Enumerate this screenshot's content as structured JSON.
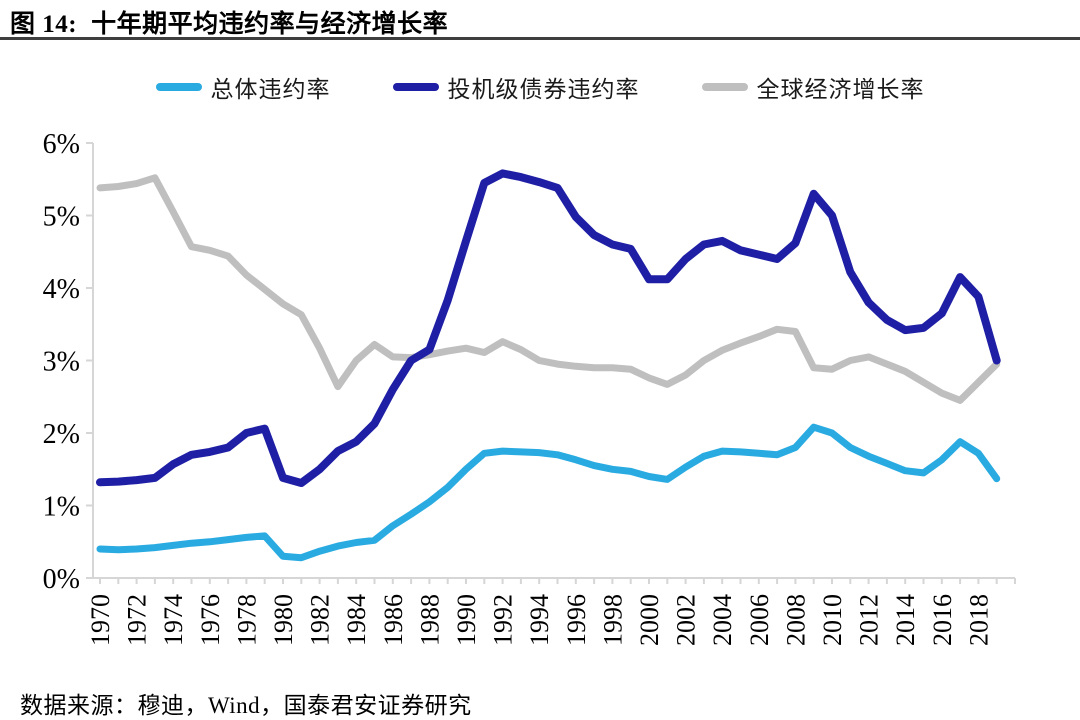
{
  "figure": {
    "title_prefix": "图 14:",
    "title_text": "十年期平均违约率与经济增长率",
    "source": "数据来源：穆迪，Wind，国泰君安证券研究"
  },
  "colors": {
    "overall": "#29ABE2",
    "speculative": "#1F1FA6",
    "global_growth": "#BFBFBF",
    "axis": "#D6D6D6",
    "title_rule": "#3F3F3F",
    "label_text": "#000000"
  },
  "chart_data": {
    "type": "line",
    "x": [
      1970,
      1971,
      1972,
      1973,
      1974,
      1975,
      1976,
      1977,
      1978,
      1979,
      1980,
      1981,
      1982,
      1983,
      1984,
      1985,
      1986,
      1987,
      1988,
      1989,
      1990,
      1991,
      1992,
      1993,
      1994,
      1995,
      1996,
      1997,
      1998,
      1999,
      2000,
      2001,
      2002,
      2003,
      2004,
      2005,
      2006,
      2007,
      2008,
      2009,
      2010,
      2011,
      2012,
      2013,
      2014,
      2015,
      2016,
      2017,
      2018,
      2019
    ],
    "x_label_step": 2,
    "x_label_min": 1970,
    "x_label_max": 2018,
    "ylim": [
      0,
      6
    ],
    "y_ticks": [
      "0%",
      "1%",
      "2%",
      "3%",
      "4%",
      "5%",
      "6%"
    ],
    "grid": false,
    "legend_position": "top",
    "series": [
      {
        "name": "总体违约率",
        "color_key": "overall",
        "values": [
          0.4,
          0.39,
          0.4,
          0.42,
          0.45,
          0.48,
          0.5,
          0.53,
          0.56,
          0.58,
          0.3,
          0.28,
          0.37,
          0.44,
          0.49,
          0.52,
          0.72,
          0.88,
          1.05,
          1.25,
          1.5,
          1.72,
          1.75,
          1.74,
          1.73,
          1.7,
          1.63,
          1.55,
          1.5,
          1.47,
          1.4,
          1.36,
          1.53,
          1.68,
          1.75,
          1.74,
          1.72,
          1.7,
          1.8,
          2.08,
          2.0,
          1.8,
          1.68,
          1.58,
          1.48,
          1.45,
          1.63,
          1.88,
          1.72,
          1.37
        ]
      },
      {
        "name": "投机级债券违约率",
        "color_key": "speculative",
        "values": [
          1.32,
          1.33,
          1.35,
          1.38,
          1.57,
          1.7,
          1.74,
          1.8,
          2.0,
          2.06,
          1.38,
          1.31,
          1.5,
          1.75,
          1.88,
          2.13,
          2.6,
          3.0,
          3.15,
          3.83,
          4.65,
          5.45,
          5.58,
          5.53,
          5.46,
          5.38,
          4.98,
          4.73,
          4.6,
          4.54,
          4.12,
          4.12,
          4.4,
          4.6,
          4.65,
          4.52,
          4.46,
          4.4,
          4.62,
          5.3,
          5.0,
          4.22,
          3.8,
          3.56,
          3.42,
          3.45,
          3.65,
          4.15,
          3.88,
          3.0
        ]
      },
      {
        "name": "全球经济增长率",
        "color_key": "global_growth",
        "values": [
          5.38,
          5.4,
          5.44,
          5.52,
          5.05,
          4.57,
          4.52,
          4.44,
          4.18,
          3.98,
          3.78,
          3.63,
          3.17,
          2.64,
          3.0,
          3.22,
          3.05,
          3.04,
          3.08,
          3.13,
          3.17,
          3.11,
          3.26,
          3.15,
          3.0,
          2.95,
          2.92,
          2.9,
          2.9,
          2.88,
          2.76,
          2.67,
          2.8,
          3.0,
          3.14,
          3.24,
          3.33,
          3.43,
          3.4,
          2.9,
          2.88,
          3.0,
          3.05,
          2.95,
          2.85,
          2.7,
          2.55,
          2.45,
          2.7,
          2.95
        ]
      }
    ]
  }
}
